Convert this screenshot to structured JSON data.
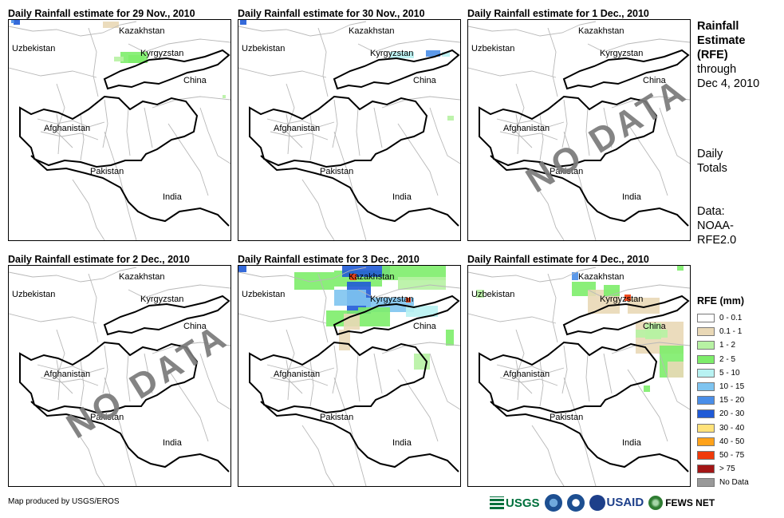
{
  "panels": [
    {
      "title": "Daily Rainfall estimate for 29 Nov., 2010",
      "no_data": false
    },
    {
      "title": "Daily Rainfall estimate for 30 Nov., 2010",
      "no_data": false
    },
    {
      "title": "Daily Rainfall estimate for 1 Dec., 2010",
      "no_data": true
    },
    {
      "title": "Daily Rainfall estimate for 2 Dec., 2010",
      "no_data": true
    },
    {
      "title": "Daily Rainfall estimate for 3 Dec., 2010",
      "no_data": false
    },
    {
      "title": "Daily Rainfall estimate for 4 Dec., 2010",
      "no_data": false
    }
  ],
  "map_labels": {
    "kazakhstan": "Kazakhstan",
    "uzbekistan": "Uzbekistan",
    "kyrgyzstan": "Kyrgyzstan",
    "china": "China",
    "afghanistan": "Afghanistan",
    "pakistan": "Pakistan",
    "india": "India"
  },
  "no_data_text": "NO DATA",
  "side": {
    "title_line1": "Rainfall",
    "title_line2": "Estimate",
    "title_line3": "(RFE)",
    "through": "through",
    "date": "Dec 4, 2010",
    "totals_line1": "Daily",
    "totals_line2": "Totals",
    "data_line1": "Data:",
    "data_line2": "NOAA-",
    "data_line3": "RFE2.0"
  },
  "legend": {
    "title": "RFE (mm)",
    "items": [
      {
        "label": "0 - 0.1",
        "color": "#ffffff"
      },
      {
        "label": "0.1 - 1",
        "color": "#e9d8b6"
      },
      {
        "label": "1 - 2",
        "color": "#b7f2a3"
      },
      {
        "label": "2 - 5",
        "color": "#7ded6a"
      },
      {
        "label": "5 - 10",
        "color": "#b8f2f2"
      },
      {
        "label": "10 - 15",
        "color": "#7ec4f0"
      },
      {
        "label": "15 - 20",
        "color": "#4a8ee8"
      },
      {
        "label": "20 - 30",
        "color": "#1f5ad6"
      },
      {
        "label": "30 - 40",
        "color": "#ffe27a"
      },
      {
        "label": "40 - 50",
        "color": "#ffa21a"
      },
      {
        "label": "50 - 75",
        "color": "#f03a0a"
      },
      {
        "label": "> 75",
        "color": "#a31616"
      },
      {
        "label": "No Data",
        "color": "#999999"
      }
    ]
  },
  "footer": {
    "credit": "Map produced by USGS/EROS",
    "logo_usgs": "USGS",
    "logo_usaid": "USAID",
    "logo_fews": "FEWS NET"
  }
}
